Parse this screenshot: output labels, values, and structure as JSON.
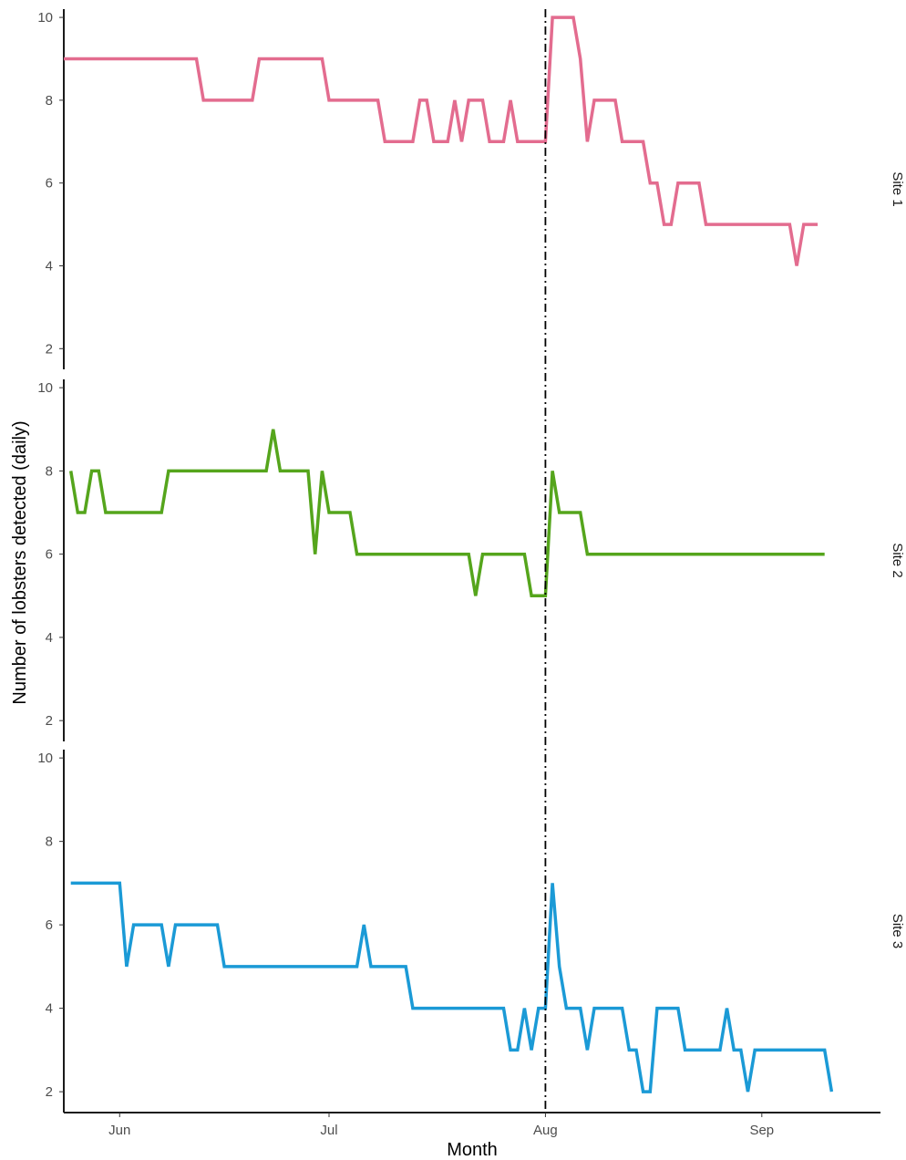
{
  "chart_data": {
    "type": "line",
    "xlabel": "Month",
    "ylabel": "Number of lobsters detected (daily)",
    "x_ticks": [
      {
        "label": "Jun",
        "date": "2021-06-01"
      },
      {
        "label": "Jul",
        "date": "2021-07-01"
      },
      {
        "label": "Aug",
        "date": "2021-08-01"
      },
      {
        "label": "Sep",
        "date": "2021-09-01"
      }
    ],
    "xlim": [
      "2021-05-24",
      "2021-09-18"
    ],
    "ylim": [
      1.5,
      10.2
    ],
    "y_ticks": [
      2,
      4,
      6,
      8,
      10
    ],
    "vline": {
      "date": "2021-08-01",
      "style": "dashdot"
    },
    "grid": false,
    "facets": [
      {
        "strip_label": "Site 1",
        "color": "#e36c8f",
        "points": [
          [
            "2021-05-24",
            9
          ],
          [
            "2021-06-12",
            9
          ],
          [
            "2021-06-13",
            8
          ],
          [
            "2021-06-20",
            8
          ],
          [
            "2021-06-21",
            9
          ],
          [
            "2021-06-30",
            9
          ],
          [
            "2021-07-01",
            8
          ],
          [
            "2021-07-08",
            8
          ],
          [
            "2021-07-09",
            7
          ],
          [
            "2021-07-13",
            7
          ],
          [
            "2021-07-14",
            8
          ],
          [
            "2021-07-15",
            8
          ],
          [
            "2021-07-16",
            7
          ],
          [
            "2021-07-18",
            7
          ],
          [
            "2021-07-19",
            8
          ],
          [
            "2021-07-20",
            7
          ],
          [
            "2021-07-21",
            8
          ],
          [
            "2021-07-23",
            8
          ],
          [
            "2021-07-24",
            7
          ],
          [
            "2021-07-26",
            7
          ],
          [
            "2021-07-27",
            8
          ],
          [
            "2021-07-28",
            7
          ],
          [
            "2021-08-01",
            7
          ],
          [
            "2021-08-02",
            10
          ],
          [
            "2021-08-05",
            10
          ],
          [
            "2021-08-06",
            9
          ],
          [
            "2021-08-07",
            7
          ],
          [
            "2021-08-08",
            8
          ],
          [
            "2021-08-11",
            8
          ],
          [
            "2021-08-12",
            7
          ],
          [
            "2021-08-15",
            7
          ],
          [
            "2021-08-16",
            6
          ],
          [
            "2021-08-17",
            6
          ],
          [
            "2021-08-18",
            5
          ],
          [
            "2021-08-19",
            5
          ],
          [
            "2021-08-20",
            6
          ],
          [
            "2021-08-23",
            6
          ],
          [
            "2021-08-24",
            5
          ],
          [
            "2021-09-05",
            5
          ],
          [
            "2021-09-06",
            4
          ],
          [
            "2021-09-07",
            5
          ],
          [
            "2021-09-09",
            5
          ]
        ]
      },
      {
        "strip_label": "Site 2",
        "color": "#55a51c",
        "points": [
          [
            "2021-05-25",
            8
          ],
          [
            "2021-05-26",
            7
          ],
          [
            "2021-05-27",
            7
          ],
          [
            "2021-05-28",
            8
          ],
          [
            "2021-05-29",
            8
          ],
          [
            "2021-05-30",
            7
          ],
          [
            "2021-06-07",
            7
          ],
          [
            "2021-06-08",
            8
          ],
          [
            "2021-06-22",
            8
          ],
          [
            "2021-06-23",
            9
          ],
          [
            "2021-06-24",
            8
          ],
          [
            "2021-06-28",
            8
          ],
          [
            "2021-06-29",
            6
          ],
          [
            "2021-06-30",
            8
          ],
          [
            "2021-07-01",
            7
          ],
          [
            "2021-07-04",
            7
          ],
          [
            "2021-07-05",
            6
          ],
          [
            "2021-07-21",
            6
          ],
          [
            "2021-07-22",
            5
          ],
          [
            "2021-07-23",
            6
          ],
          [
            "2021-07-29",
            6
          ],
          [
            "2021-07-30",
            5
          ],
          [
            "2021-08-01",
            5
          ],
          [
            "2021-08-02",
            8
          ],
          [
            "2021-08-03",
            7
          ],
          [
            "2021-08-06",
            7
          ],
          [
            "2021-08-07",
            6
          ],
          [
            "2021-09-10",
            6
          ]
        ]
      },
      {
        "strip_label": "Site 3",
        "color": "#1b9ad6",
        "points": [
          [
            "2021-05-25",
            7
          ],
          [
            "2021-06-01",
            7
          ],
          [
            "2021-06-02",
            5
          ],
          [
            "2021-06-03",
            6
          ],
          [
            "2021-06-07",
            6
          ],
          [
            "2021-06-08",
            5
          ],
          [
            "2021-06-09",
            6
          ],
          [
            "2021-06-15",
            6
          ],
          [
            "2021-06-16",
            5
          ],
          [
            "2021-07-05",
            5
          ],
          [
            "2021-07-06",
            6
          ],
          [
            "2021-07-07",
            5
          ],
          [
            "2021-07-12",
            5
          ],
          [
            "2021-07-13",
            4
          ],
          [
            "2021-07-26",
            4
          ],
          [
            "2021-07-27",
            3
          ],
          [
            "2021-07-28",
            3
          ],
          [
            "2021-07-29",
            4
          ],
          [
            "2021-07-30",
            3
          ],
          [
            "2021-07-31",
            4
          ],
          [
            "2021-08-01",
            4
          ],
          [
            "2021-08-02",
            7
          ],
          [
            "2021-08-03",
            5
          ],
          [
            "2021-08-04",
            4
          ],
          [
            "2021-08-06",
            4
          ],
          [
            "2021-08-07",
            3
          ],
          [
            "2021-08-08",
            4
          ],
          [
            "2021-08-12",
            4
          ],
          [
            "2021-08-13",
            3
          ],
          [
            "2021-08-14",
            3
          ],
          [
            "2021-08-15",
            2
          ],
          [
            "2021-08-16",
            2
          ],
          [
            "2021-08-17",
            4
          ],
          [
            "2021-08-20",
            4
          ],
          [
            "2021-08-21",
            3
          ],
          [
            "2021-08-26",
            3
          ],
          [
            "2021-08-27",
            4
          ],
          [
            "2021-08-28",
            3
          ],
          [
            "2021-08-29",
            3
          ],
          [
            "2021-08-30",
            2
          ],
          [
            "2021-08-31",
            3
          ],
          [
            "2021-09-10",
            3
          ],
          [
            "2021-09-11",
            2
          ]
        ]
      }
    ]
  }
}
